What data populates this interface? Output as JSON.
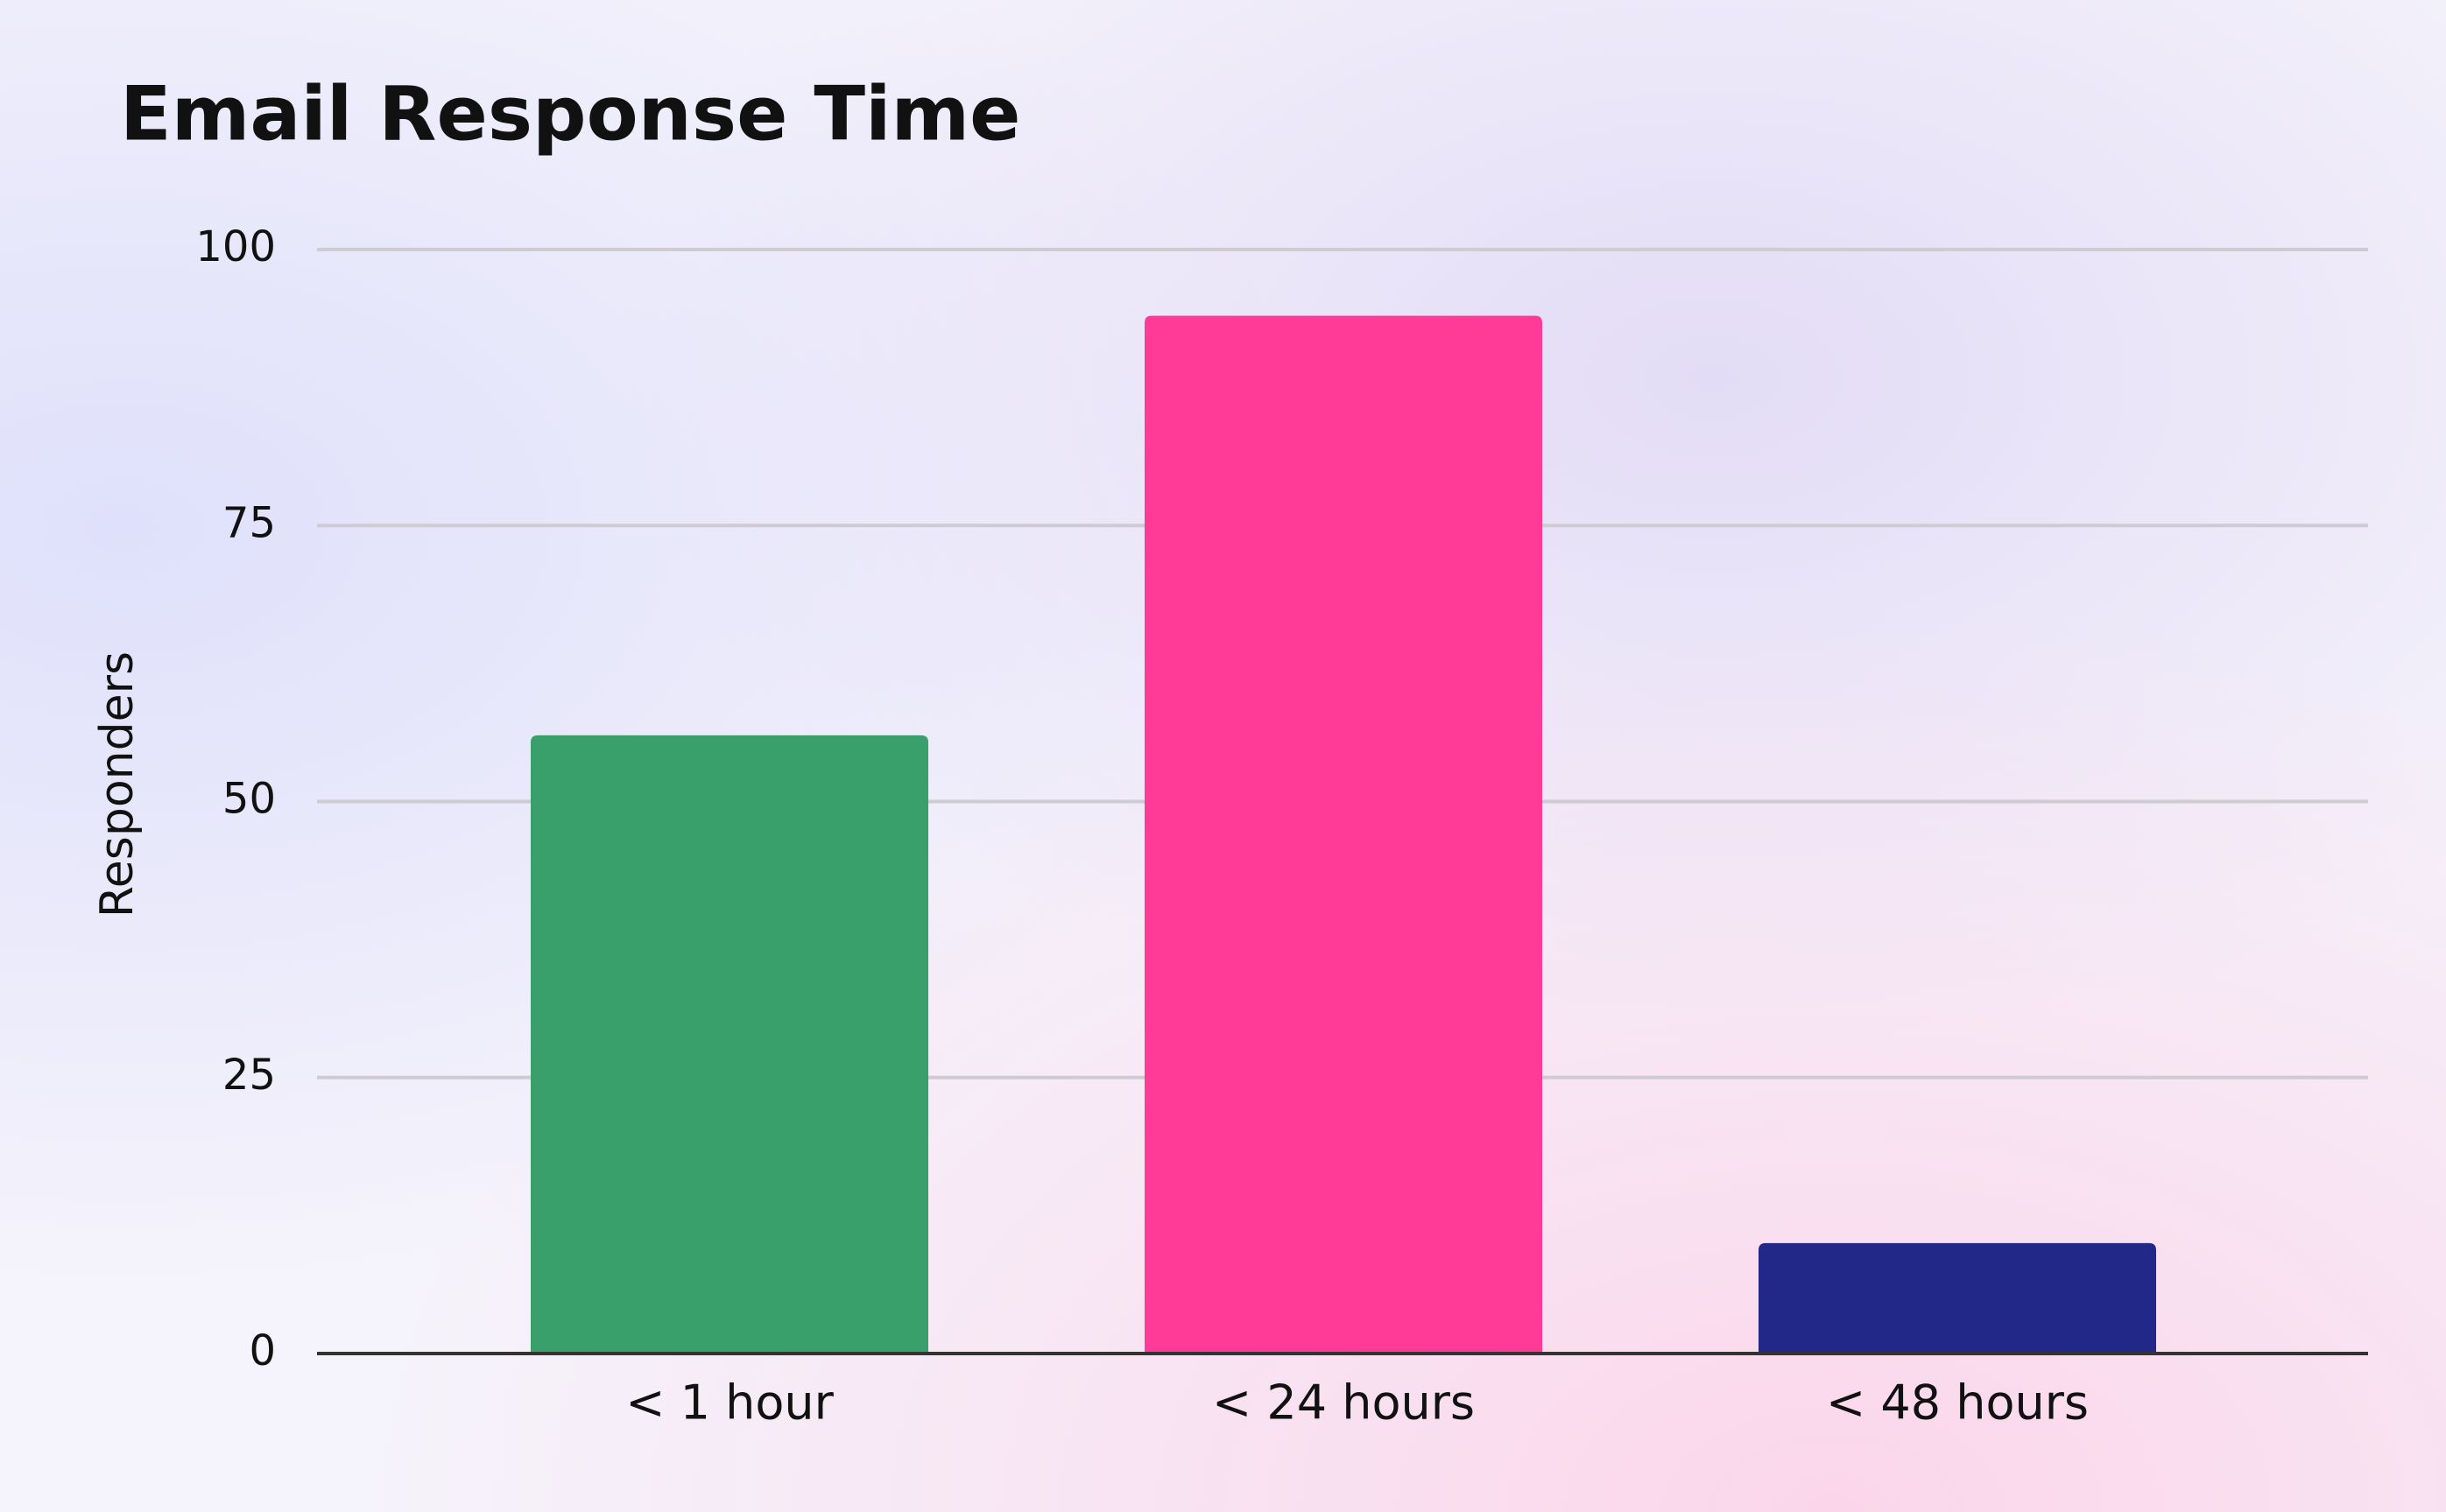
{
  "chart_data": {
    "type": "bar",
    "title": "Email Response Time",
    "y_label": "Responders",
    "categories": [
      "< 1 hour",
      "< 24 hours",
      "< 48 hours"
    ],
    "values": [
      56,
      94,
      10
    ],
    "colors": [
      "#3aa06b",
      "#ff3b97",
      "#212888"
    ],
    "ylim": [
      0,
      100
    ],
    "yticks": [
      0,
      25,
      50,
      75,
      100
    ],
    "grid": true
  }
}
